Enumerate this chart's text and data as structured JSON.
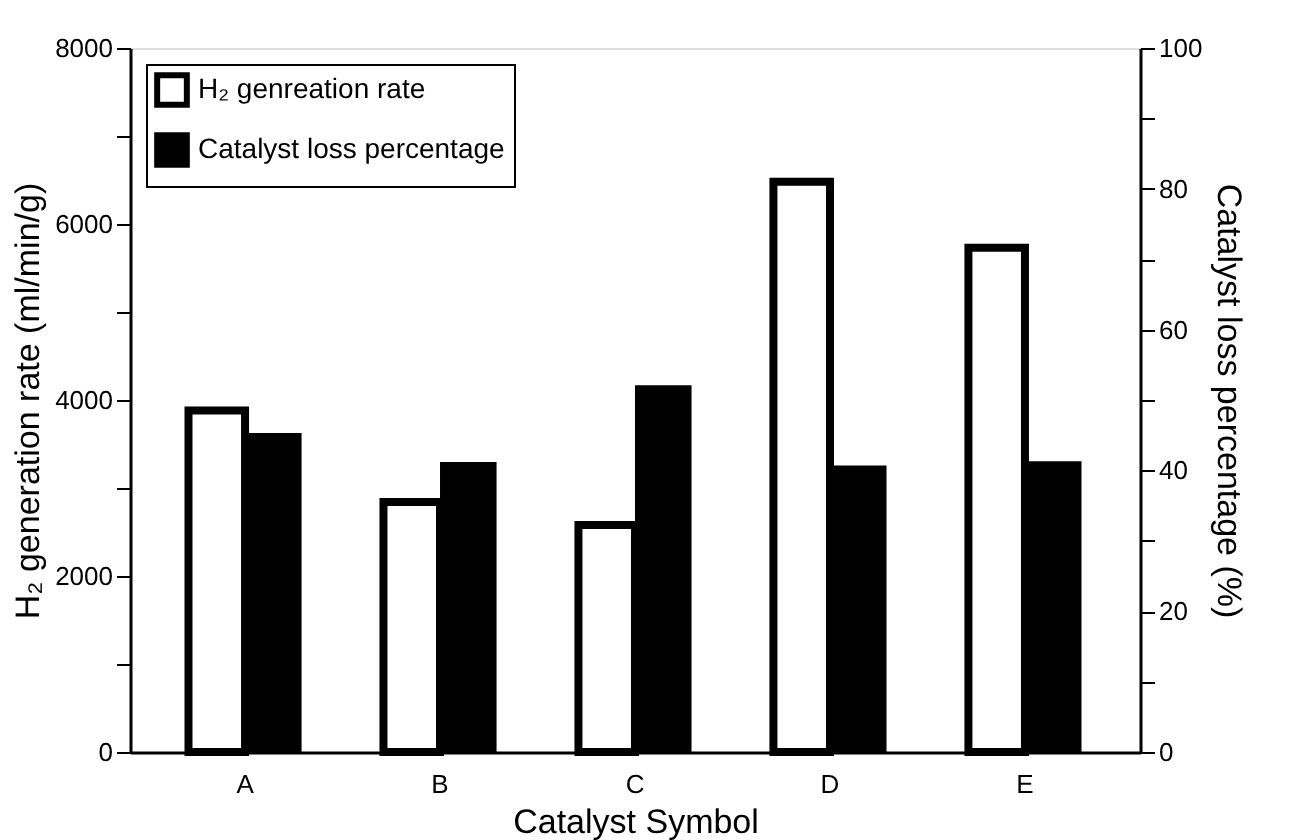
{
  "chart_data": {
    "type": "bar",
    "xlabel": "Catalyst Symbol",
    "ylabel": "H₂ generation rate (ml/min/g)",
    "y2label": "Catalyst loss percentage (%)",
    "categories": [
      "A",
      "B",
      "C",
      "D",
      "E"
    ],
    "series": [
      {
        "name": "H₂ genreation rate",
        "color": "#ffffff",
        "values": [
          3880,
          2840,
          2580,
          6480,
          5730
        ]
      },
      {
        "name": "Catalyst loss percentage",
        "color": "#000000",
        "axis": "y2",
        "values": [
          45.3,
          41.2,
          52.1,
          40.7,
          41.3
        ]
      }
    ],
    "ylim": [
      0,
      8000
    ],
    "yticks": [
      0,
      {
        "value": 1000,
        "label": null
      },
      2000,
      {
        "value": 3000,
        "label": null
      },
      4000,
      {
        "value": 5000,
        "label": null
      },
      6000,
      {
        "value": 7000,
        "label": null
      },
      8000
    ],
    "y2lim": [
      0,
      100
    ],
    "y2ticks": [
      0,
      {
        "value": 10,
        "label": null
      },
      20,
      {
        "value": 30,
        "label": null
      },
      40,
      {
        "value": 50,
        "label": null
      },
      60,
      {
        "value": 70,
        "label": null
      },
      80,
      {
        "value": 90,
        "label": null
      },
      100
    ],
    "legend": "top left",
    "grid": false
  }
}
